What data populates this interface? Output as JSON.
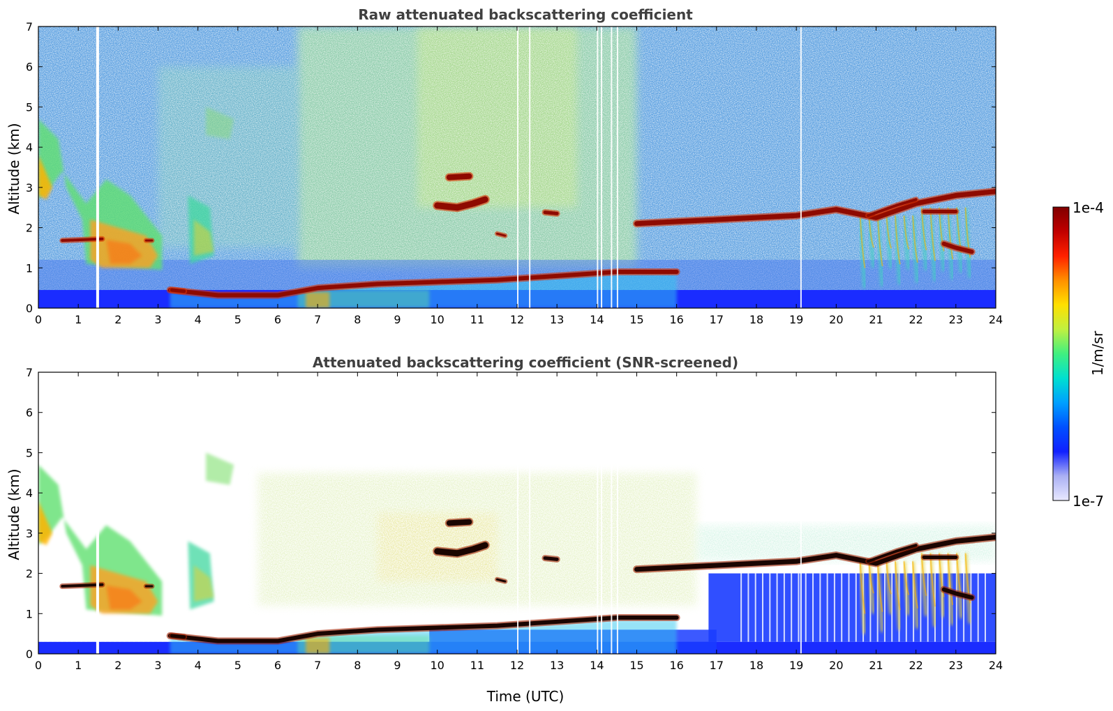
{
  "chart_data": [
    {
      "type": "heatmap",
      "title": "Raw attenuated backscattering coefficient",
      "xlabel": "",
      "ylabel": "Altitude (km)",
      "xlim": [
        0,
        24
      ],
      "ylim": [
        0,
        7
      ],
      "x_ticks": [
        "0",
        "1",
        "2",
        "3",
        "4",
        "5",
        "6",
        "7",
        "8",
        "9",
        "10",
        "11",
        "12",
        "13",
        "14",
        "15",
        "16",
        "17",
        "18",
        "19",
        "20",
        "21",
        "22",
        "23",
        "24"
      ],
      "y_ticks": [
        "0",
        "1",
        "2",
        "3",
        "4",
        "5",
        "6",
        "7"
      ],
      "grid": false,
      "screened": false
    },
    {
      "type": "heatmap",
      "title": "Attenuated backscattering coefficient (SNR-screened)",
      "xlabel": "Time (UTC)",
      "ylabel": "Altitude (km)",
      "xlim": [
        0,
        24
      ],
      "ylim": [
        0,
        7
      ],
      "x_ticks": [
        "0",
        "1",
        "2",
        "3",
        "4",
        "5",
        "6",
        "7",
        "8",
        "9",
        "10",
        "11",
        "12",
        "13",
        "14",
        "15",
        "16",
        "17",
        "18",
        "19",
        "20",
        "21",
        "22",
        "23",
        "24"
      ],
      "y_ticks": [
        "0",
        "1",
        "2",
        "3",
        "4",
        "5",
        "6",
        "7"
      ],
      "grid": false,
      "screened": true
    }
  ],
  "colorbar": {
    "label": "1/m/sr",
    "max_label": "1e-4",
    "min_label": "1e-7",
    "range": [
      1e-07,
      0.0001
    ],
    "scale": "log",
    "colormap": "jet-like",
    "colors": [
      "#e8e8ff",
      "#aab0f4",
      "#1020ff",
      "#0050ff",
      "#00a0ff",
      "#00e0d0",
      "#40f080",
      "#c0f040",
      "#ffe000",
      "#ff9000",
      "#ff2000",
      "#c00000",
      "#800000"
    ]
  },
  "features": {
    "boundary_layer_top_km": [
      [
        3.3,
        0.45
      ],
      [
        4.5,
        0.32
      ],
      [
        6,
        0.32
      ],
      [
        7,
        0.5
      ],
      [
        8.5,
        0.6
      ],
      [
        10,
        0.65
      ],
      [
        11.5,
        0.7
      ],
      [
        13,
        0.8
      ],
      [
        14.5,
        0.9
      ],
      [
        16,
        0.9
      ]
    ],
    "cloud_layer_km": [
      [
        15,
        2.1
      ],
      [
        16,
        2.15
      ],
      [
        18,
        2.25
      ],
      [
        19,
        2.3
      ],
      [
        20,
        2.45
      ],
      [
        21,
        2.25
      ],
      [
        22,
        2.6
      ],
      [
        23,
        2.8
      ],
      [
        24,
        2.9
      ]
    ],
    "missing_data_hours": [
      1.45,
      1.5
    ]
  }
}
